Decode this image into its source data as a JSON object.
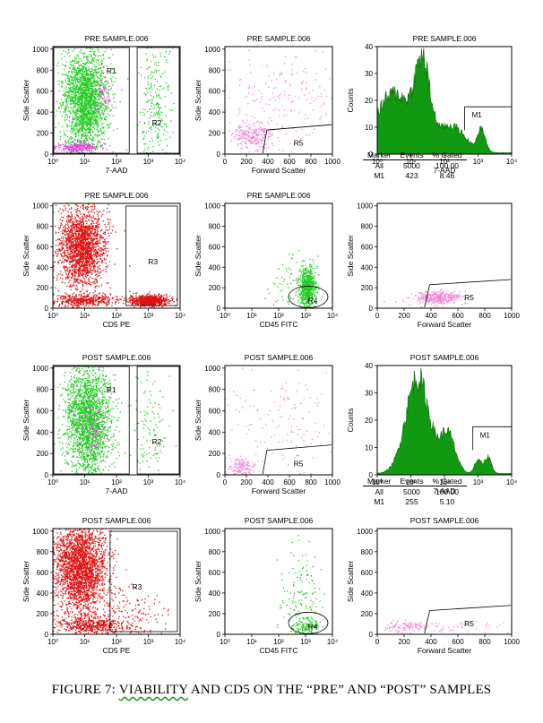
{
  "figure": {
    "caption_prefix": "FIGURE 7:",
    "caption_underlined": "VIABILITY",
    "caption_suffix": " AND CD5 ON THE “PRE” AND “POST” SAMPLES",
    "colors": {
      "green": "#22cc22",
      "red": "#dd1111",
      "magenta": "#e040e0",
      "pink": "#f08ad8",
      "hist": "#119911"
    }
  },
  "stats_tables": [
    {
      "headers": [
        "Marker",
        "Events",
        "% Gated"
      ],
      "rows": [
        [
          "All",
          "5000",
          "100.00"
        ],
        [
          "M1",
          "423",
          "8.46"
        ]
      ]
    },
    {
      "headers": [
        "Marker",
        "Events",
        "% Gated"
      ],
      "rows": [
        [
          "All",
          "5000",
          "100.00"
        ],
        [
          "M1",
          "255",
          "5.10"
        ]
      ]
    }
  ],
  "chart_data": [
    {
      "id": "pre-7aad-ssc",
      "type": "scatter",
      "title": "PRE SAMPLE.006",
      "xlabel": "7-AAD",
      "ylabel": "Side Scatter",
      "xscale": "log",
      "xlim": [
        1,
        10000
      ],
      "ylim": [
        0,
        1024
      ],
      "x_ticks": [
        "10⁰",
        "10¹",
        "10²",
        "10³",
        "10⁴"
      ],
      "y_ticks": [
        "0",
        "200",
        "400",
        "600",
        "800",
        "1000"
      ],
      "colors": [
        "green",
        "magenta"
      ],
      "gates": [
        "R1",
        "R2"
      ]
    },
    {
      "id": "pre-fsc-ssc",
      "type": "scatter",
      "title": "PRE SAMPLE.006",
      "xlabel": "Forward Scatter",
      "ylabel": "Side Scatter",
      "xlim": [
        0,
        1024
      ],
      "ylim": [
        0,
        1024
      ],
      "x_ticks": [
        "0",
        "200",
        "400",
        "600",
        "800",
        "1000"
      ],
      "y_ticks": [
        "0",
        "200",
        "400",
        "600",
        "800",
        "1000"
      ],
      "colors": [
        "pink"
      ],
      "gates": [
        "R5"
      ]
    },
    {
      "id": "pre-7aad-hist",
      "type": "area",
      "title": "PRE SAMPLE.006",
      "xlabel": "7-AAD",
      "ylabel": "Counts",
      "xscale": "log",
      "xlim": [
        1,
        10000
      ],
      "ylim": [
        0,
        40
      ],
      "x_ticks": [
        "10⁰",
        "10¹",
        "10²",
        "10³",
        "10⁴"
      ],
      "y_ticks": [
        "0",
        "10",
        "20",
        "30",
        "40"
      ],
      "marker": "M1",
      "marker_range": [
        400,
        10000
      ]
    },
    {
      "id": "pre-cd5-ssc",
      "type": "scatter",
      "title": "PRE SAMPLE.006",
      "xlabel": "CD5 PE",
      "ylabel": "Side Scatter",
      "xscale": "log",
      "xlim": [
        1,
        10000
      ],
      "ylim": [
        0,
        1024
      ],
      "x_ticks": [
        "10⁰",
        "10¹",
        "10²",
        "10³",
        "10⁴"
      ],
      "y_ticks": [
        "0",
        "200",
        "400",
        "600",
        "800",
        "1000"
      ],
      "colors": [
        "red"
      ],
      "gates": [
        "R3"
      ]
    },
    {
      "id": "pre-cd45-ssc",
      "type": "scatter",
      "title": "PRE SAMPLE.006",
      "xlabel": "CD45 FITC",
      "ylabel": "Side Scatter",
      "xscale": "log",
      "xlim": [
        1,
        10000
      ],
      "ylim": [
        0,
        1024
      ],
      "x_ticks": [
        "10⁰",
        "10¹",
        "10²",
        "10³",
        "10⁴"
      ],
      "y_ticks": [
        "0",
        "200",
        "400",
        "600",
        "800",
        "1000"
      ],
      "colors": [
        "green"
      ],
      "gates": [
        "R4"
      ]
    },
    {
      "id": "pre-fsc-ssc-2",
      "type": "scatter",
      "title": "",
      "xlabel": "Forward Scatter",
      "ylabel": "Side Scatter",
      "xlim": [
        0,
        1024
      ],
      "ylim": [
        0,
        1024
      ],
      "x_ticks": [
        "0",
        "200",
        "400",
        "600",
        "800",
        "1000"
      ],
      "y_ticks": [
        "0",
        "200",
        "400",
        "600",
        "800",
        "1000"
      ],
      "colors": [
        "pink"
      ],
      "gates": [
        "R5"
      ]
    },
    {
      "id": "post-7aad-ssc",
      "type": "scatter",
      "title": "POST SAMPLE.006",
      "xlabel": "7-AAD",
      "ylabel": "Side Scatter",
      "xscale": "log",
      "xlim": [
        1,
        10000
      ],
      "ylim": [
        0,
        1024
      ],
      "x_ticks": [
        "10⁰",
        "10¹",
        "10²",
        "10³",
        "10⁴"
      ],
      "y_ticks": [
        "0",
        "200",
        "400",
        "600",
        "800",
        "1000"
      ],
      "colors": [
        "green",
        "magenta"
      ],
      "gates": [
        "R1",
        "R2"
      ]
    },
    {
      "id": "post-fsc-ssc",
      "type": "scatter",
      "title": "POST SAMPLE.006",
      "xlabel": "Forward Scatter",
      "ylabel": "Side Scatter",
      "xlim": [
        0,
        1024
      ],
      "ylim": [
        0,
        1024
      ],
      "x_ticks": [
        "0",
        "200",
        "400",
        "600",
        "800",
        "1000"
      ],
      "y_ticks": [
        "0",
        "200",
        "400",
        "600",
        "800",
        "1000"
      ],
      "colors": [
        "pink"
      ],
      "gates": [
        "R5"
      ]
    },
    {
      "id": "post-7aad-hist",
      "type": "area",
      "title": "POST SAMPLE.006",
      "xlabel": "7-AAD",
      "ylabel": "Counts",
      "xscale": "log",
      "xlim": [
        1,
        10000
      ],
      "ylim": [
        0,
        40
      ],
      "x_ticks": [
        "10⁰",
        "10¹",
        "10²",
        "10³",
        "10⁴"
      ],
      "y_ticks": [
        "0",
        "10",
        "20",
        "30",
        "40"
      ],
      "marker": "M1",
      "marker_range": [
        700,
        10000
      ]
    },
    {
      "id": "post-cd5-ssc",
      "type": "scatter",
      "title": "POST SAMPLE.006",
      "xlabel": "CD5 PE",
      "ylabel": "Side Scatter",
      "xscale": "log",
      "xlim": [
        1,
        10000
      ],
      "ylim": [
        0,
        1024
      ],
      "x_ticks": [
        "10⁰",
        "10¹",
        "10²",
        "10³",
        "10⁴"
      ],
      "y_ticks": [
        "0",
        "200",
        "400",
        "600",
        "800",
        "1000"
      ],
      "colors": [
        "red"
      ],
      "gates": [
        "R3"
      ]
    },
    {
      "id": "post-cd45-ssc",
      "type": "scatter",
      "title": "POST SAMPLE.006",
      "xlabel": "CD45 FITC",
      "ylabel": "Side Scatter",
      "xscale": "log",
      "xlim": [
        1,
        10000
      ],
      "ylim": [
        0,
        1024
      ],
      "x_ticks": [
        "10⁰",
        "10¹",
        "10²",
        "10³",
        "10⁴"
      ],
      "y_ticks": [
        "0",
        "200",
        "400",
        "600",
        "800",
        "1000"
      ],
      "colors": [
        "green"
      ],
      "gates": [
        "R4"
      ]
    },
    {
      "id": "post-fsc-ssc-2",
      "type": "scatter",
      "title": "POST SAMPLE.006",
      "xlabel": "Forward Scatter",
      "ylabel": "Side Scatter",
      "xlim": [
        0,
        1024
      ],
      "ylim": [
        0,
        1024
      ],
      "x_ticks": [
        "0",
        "200",
        "400",
        "600",
        "800",
        "1000"
      ],
      "y_ticks": [
        "0",
        "200",
        "400",
        "600",
        "800",
        "1000"
      ],
      "colors": [
        "pink"
      ],
      "gates": [
        "R5"
      ]
    }
  ]
}
